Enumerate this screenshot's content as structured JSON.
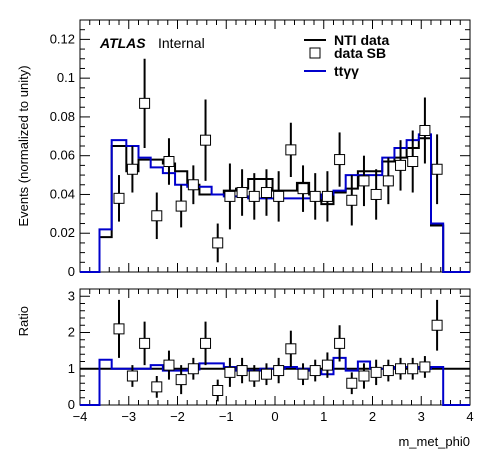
{
  "chart_data": {
    "type": "histogram",
    "xlabel": "m_met_phi0",
    "xlim": [
      -4,
      4
    ],
    "x_ticks": [
      "−4",
      "−3",
      "−2",
      "−1",
      "0",
      "1",
      "2",
      "3",
      "4"
    ],
    "bin_edges": [
      -4.0,
      -3.6,
      -3.35,
      -3.05,
      -2.8,
      -2.55,
      -2.3,
      -2.05,
      -1.8,
      -1.55,
      -1.3,
      -1.05,
      -0.8,
      -0.55,
      -0.3,
      -0.05,
      0.2,
      0.45,
      0.7,
      0.95,
      1.2,
      1.45,
      1.7,
      1.95,
      2.2,
      2.45,
      2.7,
      2.95,
      3.2,
      3.45,
      4.0
    ],
    "bin_centers": [
      -3.8,
      -3.475,
      -3.2,
      -2.925,
      -2.675,
      -2.425,
      -2.175,
      -1.925,
      -1.675,
      -1.425,
      -1.175,
      -0.925,
      -0.675,
      -0.425,
      -0.175,
      0.075,
      0.325,
      0.575,
      0.825,
      1.075,
      1.325,
      1.575,
      1.825,
      2.075,
      2.325,
      2.575,
      2.825,
      3.075,
      3.325,
      3.725
    ],
    "atlas_label": "ATLAS",
    "atlas_sublabel": "Internal",
    "main": {
      "ylabel": "Events (normalized to unity)",
      "ylim": [
        0,
        0.13
      ],
      "y_ticks": [
        "0",
        "0.02",
        "0.04",
        "0.06",
        "0.08",
        "0.1",
        "0.12"
      ],
      "legend_position": "top-right",
      "series": [
        {
          "name": "NTI data",
          "style": "step",
          "color": "#000000",
          "values": [
            0,
            0.018,
            0.065,
            0.052,
            0.058,
            0.058,
            0.056,
            0.052,
            0.045,
            0.04,
            0.04,
            0.042,
            0.043,
            0.048,
            0.048,
            0.042,
            0.042,
            0.046,
            0.04,
            0.035,
            0.041,
            0.043,
            0.052,
            0.052,
            0.057,
            0.059,
            0.064,
            0.069,
            0.024,
            0
          ]
        },
        {
          "name": "data SB",
          "style": "markers",
          "color": "#000000",
          "values": [
            null,
            null,
            0.038,
            0.053,
            0.087,
            0.029,
            0.057,
            0.034,
            0.045,
            0.068,
            0.015,
            0.039,
            0.041,
            0.039,
            0.041,
            0.039,
            0.063,
            0.043,
            0.039,
            0.039,
            0.058,
            0.037,
            0.047,
            0.04,
            0.047,
            0.055,
            0.057,
            0.073,
            0.053,
            null
          ],
          "errors": [
            null,
            null,
            0.012,
            0.012,
            0.023,
            0.012,
            0.012,
            0.011,
            0.01,
            0.021,
            0.01,
            0.017,
            0.012,
            0.012,
            0.012,
            0.013,
            0.014,
            0.012,
            0.012,
            0.013,
            0.014,
            0.013,
            0.013,
            0.013,
            0.012,
            0.013,
            0.016,
            0.017,
            0.018,
            null
          ]
        },
        {
          "name": "ttγγ",
          "style": "step",
          "color": "#0000cc",
          "values": [
            0,
            0.022,
            0.068,
            0.065,
            0.059,
            0.054,
            0.051,
            0.045,
            0.044,
            0.044,
            0.04,
            0.039,
            0.039,
            0.038,
            0.038,
            0.038,
            0.038,
            0.038,
            0.038,
            0.04,
            0.042,
            0.05,
            0.05,
            0.05,
            0.059,
            0.064,
            0.068,
            0.071,
            0.025,
            0
          ]
        }
      ]
    },
    "ratio": {
      "ylabel": "Ratio",
      "ylim": [
        0,
        3.2
      ],
      "y_ticks": [
        "0",
        "1",
        "2",
        "3"
      ],
      "reference": 1,
      "series": [
        {
          "name": "ratio step",
          "style": "step",
          "color": "#0000cc",
          "values": [
            0,
            1.25,
            1.0,
            1.0,
            1.0,
            1.1,
            0.95,
            0.95,
            0.98,
            1.15,
            1.15,
            1.05,
            0.95,
            0.95,
            1.0,
            1.0,
            1.05,
            1.0,
            0.95,
            0.85,
            1.3,
            0.95,
            1.2,
            1.0,
            1.0,
            1.05,
            1.05,
            1.0,
            1.05,
            0
          ]
        },
        {
          "name": "ratio points",
          "style": "markers",
          "color": "#000000",
          "values": [
            null,
            null,
            2.1,
            0.8,
            1.7,
            0.5,
            1.1,
            0.7,
            1.0,
            1.7,
            0.4,
            0.9,
            0.95,
            0.8,
            0.85,
            0.95,
            1.55,
            0.85,
            0.95,
            1.1,
            1.7,
            0.6,
            0.8,
            0.9,
            0.95,
            1.0,
            1.0,
            1.05,
            2.2,
            null
          ],
          "errors": [
            null,
            null,
            0.8,
            0.3,
            0.6,
            0.3,
            0.4,
            0.4,
            0.3,
            0.6,
            0.3,
            0.4,
            0.35,
            0.3,
            0.3,
            0.35,
            0.5,
            0.3,
            0.3,
            0.35,
            0.5,
            0.3,
            0.35,
            0.35,
            0.3,
            0.3,
            0.3,
            0.3,
            0.7,
            null
          ]
        }
      ]
    }
  }
}
